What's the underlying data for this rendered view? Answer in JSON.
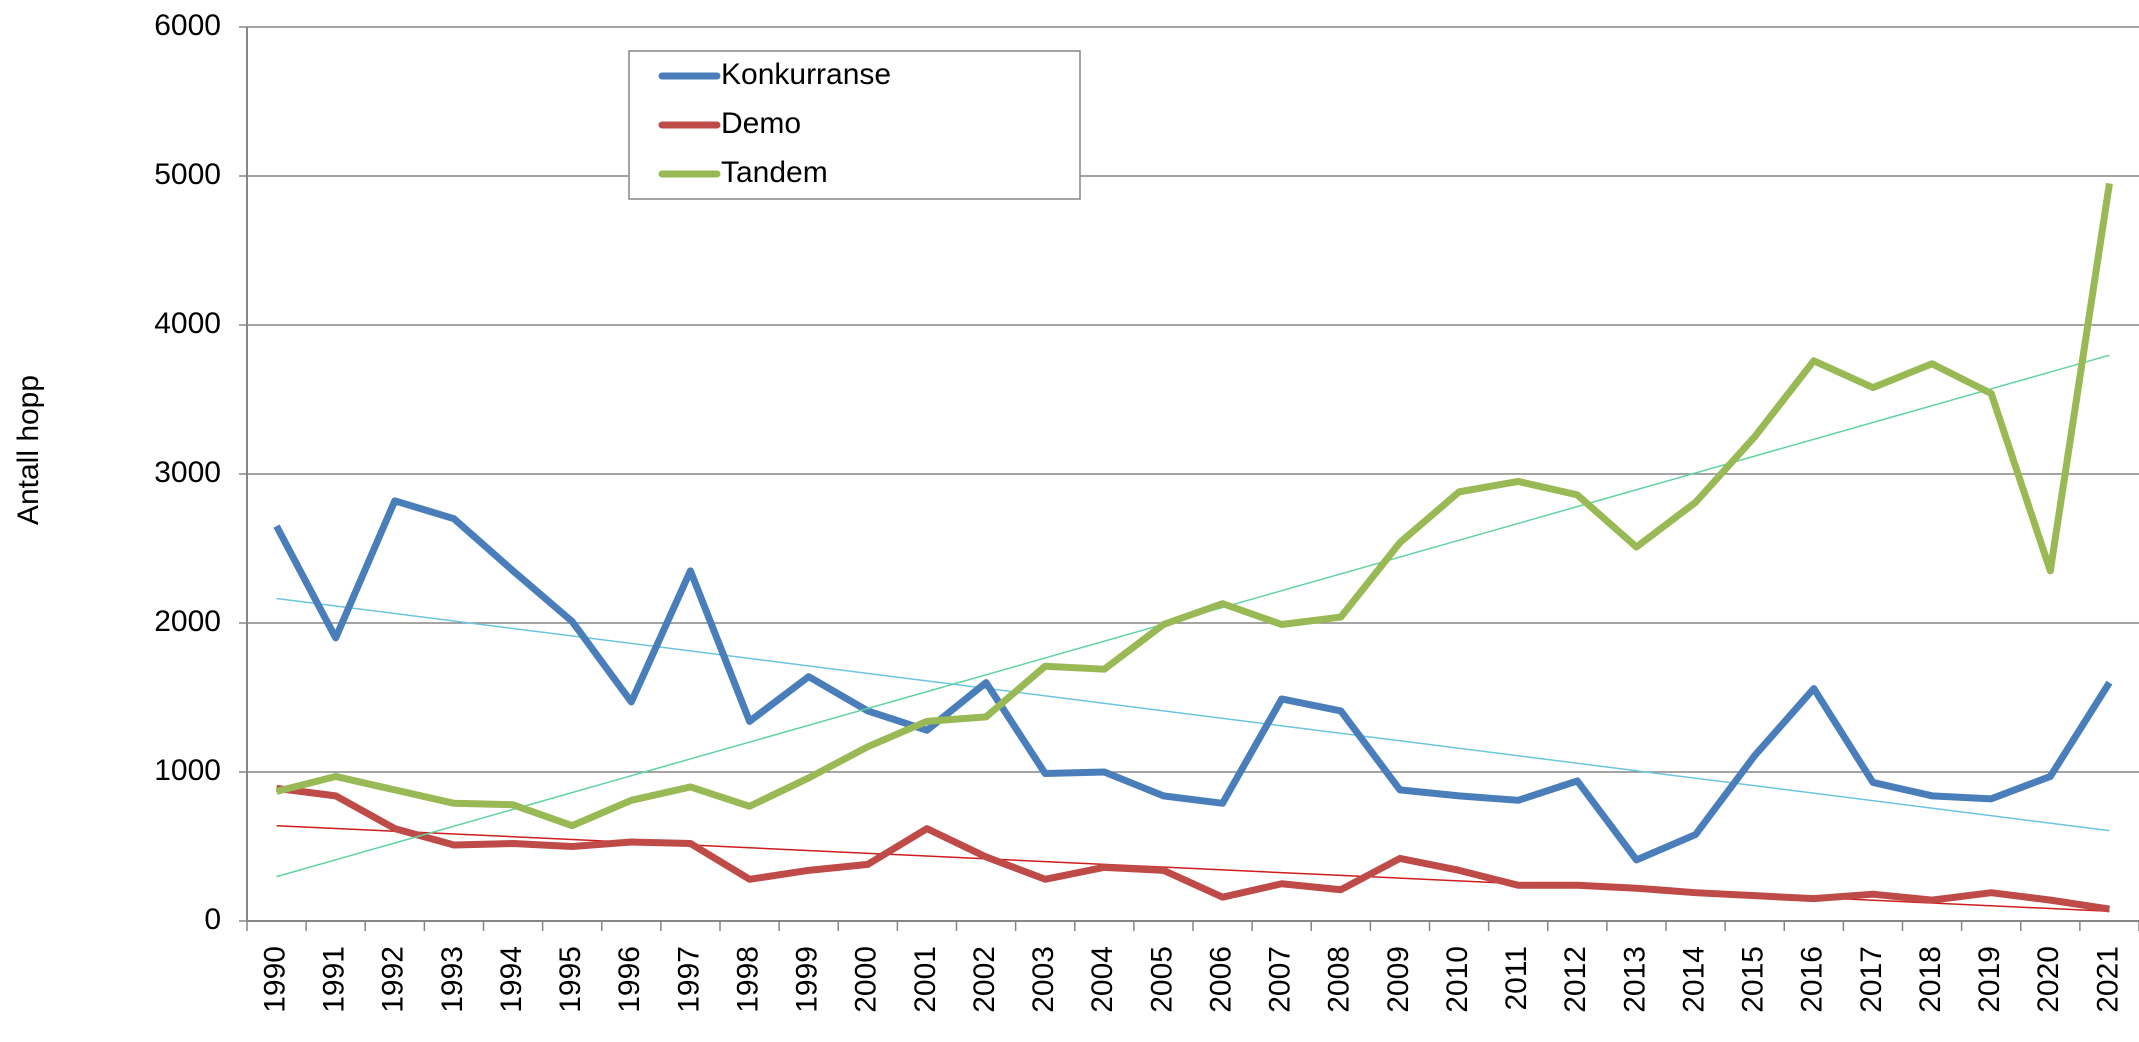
{
  "chart_data": {
    "type": "line",
    "y_label": "Antall hopp",
    "categories": [
      "1990",
      "1991",
      "1992",
      "1993",
      "1994",
      "1995",
      "1996",
      "1997",
      "1998",
      "1999",
      "2000",
      "2001",
      "2002",
      "2003",
      "2004",
      "2005",
      "2006",
      "2007",
      "2008",
      "2009",
      "2010",
      "2011",
      "2012",
      "2013",
      "2014",
      "2015",
      "2016",
      "2017",
      "2018",
      "2019",
      "2020",
      "2021"
    ],
    "series": [
      {
        "name": "Konkurranse",
        "color": "#4a7ebb",
        "trend_color": "#6cc5e0",
        "values": [
          2650,
          1900,
          2820,
          2700,
          2350,
          2010,
          1470,
          2350,
          1340,
          1640,
          1410,
          1280,
          1600,
          990,
          1000,
          840,
          790,
          1490,
          1410,
          880,
          840,
          810,
          940,
          410,
          580,
          1110,
          1560,
          930,
          840,
          820,
          970,
          1600
        ]
      },
      {
        "name": "Demo",
        "color": "#be4b48",
        "trend_color": "#d01c1c",
        "values": [
          890,
          840,
          620,
          510,
          520,
          500,
          530,
          520,
          280,
          340,
          380,
          620,
          430,
          280,
          360,
          340,
          160,
          250,
          210,
          420,
          340,
          240,
          240,
          220,
          190,
          170,
          150,
          180,
          140,
          190,
          140,
          80
        ]
      },
      {
        "name": "Tandem",
        "color": "#98b954",
        "trend_color": "#5fd3a0",
        "values": [
          870,
          970,
          880,
          790,
          780,
          640,
          810,
          900,
          770,
          960,
          1170,
          1340,
          1370,
          1710,
          1690,
          1990,
          2130,
          1990,
          2040,
          2540,
          2880,
          2950,
          2860,
          2510,
          2810,
          3250,
          3760,
          3580,
          3740,
          3540,
          2350,
          4950
        ]
      }
    ],
    "trendline": true,
    "ylim": [
      0,
      6000
    ],
    "yticks": [
      0,
      1000,
      2000,
      3000,
      4000,
      5000,
      6000
    ],
    "grid": true,
    "legend": "top-left"
  }
}
